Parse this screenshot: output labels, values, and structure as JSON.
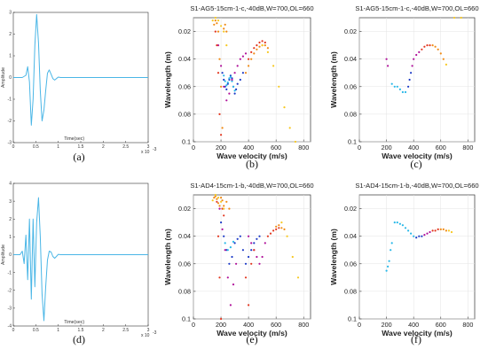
{
  "chart_data": [
    {
      "id": "a",
      "type": "line",
      "caption": "(a)",
      "title": "",
      "xlabel": "Time(sec)",
      "ylabel": "Amplitude",
      "xlim": [
        0,
        3
      ],
      "ylim": [
        -3,
        3
      ],
      "xticks": [
        "0",
        "0.5",
        "1",
        "1.5",
        "2",
        "2.5",
        "3"
      ],
      "yticks": [
        "-3",
        "-2",
        "-1",
        "0",
        "1",
        "2",
        "3"
      ],
      "x_exponent": "x 10",
      "x_exponent_power": "-3",
      "series": [
        {
          "color": "#4ab6e6",
          "x": [
            0,
            0.2,
            0.28,
            0.32,
            0.36,
            0.4,
            0.44,
            0.48,
            0.52,
            0.56,
            0.6,
            0.64,
            0.68,
            0.72,
            0.76,
            0.8,
            0.84,
            0.88,
            0.92,
            0.96,
            1.0,
            1.05,
            1.1,
            1.2,
            3.0
          ],
          "y": [
            0,
            0,
            0.1,
            0.5,
            -0.2,
            -2.2,
            -1.0,
            1.5,
            2.9,
            1.6,
            -0.6,
            -2.0,
            -1.5,
            -0.6,
            0.2,
            0.35,
            0.15,
            -0.05,
            -0.12,
            -0.05,
            0.02,
            0,
            0,
            0,
            0
          ]
        }
      ]
    },
    {
      "id": "b",
      "type": "scatter",
      "caption": "(b)",
      "title": "S1-AG5-15cm-1-c,-40dB,W=700,OL=660",
      "xlabel": "Wave velocity (m/s)",
      "ylabel": "Wavelength (m)",
      "xlim": [
        0,
        850
      ],
      "ylim": [
        0.1,
        0.01
      ],
      "xticks": [
        "0",
        "200",
        "400",
        "600",
        "800"
      ],
      "yticks": [
        "0.02",
        "0.04",
        "0.06",
        "0.08",
        "0.1"
      ],
      "series": [
        {
          "color": "#1b39c6",
          "x": [
            210,
            220,
            230,
            240,
            250,
            260,
            270,
            280,
            290,
            300,
            310,
            320,
            340,
            360
          ],
          "y": [
            0.05,
            0.055,
            0.06,
            0.062,
            0.058,
            0.055,
            0.052,
            0.054,
            0.06,
            0.065,
            0.062,
            0.058,
            0.055,
            0.05
          ]
        },
        {
          "color": "#29b8e8",
          "x": [
            220,
            230,
            240,
            250,
            260,
            270,
            280,
            290,
            300
          ],
          "y": [
            0.052,
            0.056,
            0.059,
            0.057,
            0.054,
            0.053,
            0.056,
            0.06,
            0.063
          ]
        },
        {
          "color": "#b0129a",
          "x": [
            180,
            200,
            220,
            240,
            260,
            280,
            300,
            320,
            340,
            360,
            380
          ],
          "y": [
            0.03,
            0.045,
            0.06,
            0.07,
            0.065,
            0.055,
            0.05,
            0.045,
            0.04,
            0.038,
            0.036
          ]
        },
        {
          "color": "#e2361f",
          "x": [
            160,
            170,
            180,
            190,
            200,
            400,
            420,
            440,
            460,
            480,
            500,
            520
          ],
          "y": [
            0.02,
            0.03,
            0.05,
            0.08,
            0.095,
            0.04,
            0.035,
            0.032,
            0.03,
            0.028,
            0.027,
            0.028
          ]
        },
        {
          "color": "#f08a14",
          "x": [
            150,
            160,
            170,
            180,
            190,
            200,
            210,
            220,
            230,
            240,
            380,
            400,
            420,
            440,
            460,
            480,
            500,
            520,
            540
          ],
          "y": [
            0.015,
            0.012,
            0.014,
            0.02,
            0.04,
            0.06,
            0.09,
            0.018,
            0.015,
            0.02,
            0.05,
            0.045,
            0.04,
            0.036,
            0.033,
            0.031,
            0.03,
            0.03,
            0.032
          ]
        },
        {
          "color": "#f7c820",
          "x": [
            140,
            160,
            180,
            200,
            220,
            240,
            500,
            540,
            580,
            620,
            660,
            700,
            740
          ],
          "y": [
            0.012,
            0.01,
            0.012,
            0.016,
            0.02,
            0.03,
            0.03,
            0.035,
            0.045,
            0.06,
            0.075,
            0.09,
            0.1
          ]
        }
      ]
    },
    {
      "id": "c",
      "type": "scatter",
      "caption": "(c)",
      "title": "S1-AG5-15cm-1-c,-40dB,W=700,OL=660",
      "xlabel": "Wave velocity (m/s)",
      "ylabel": "Wavelength (m)",
      "xlim": [
        0,
        850
      ],
      "ylim": [
        0.1,
        0.01
      ],
      "xticks": [
        "0",
        "200",
        "400",
        "600",
        "800"
      ],
      "yticks": [
        "0.02",
        "0.04",
        "0.06",
        "0.08",
        "0.1"
      ],
      "series": [
        {
          "color": "#29b8e8",
          "x": [
            240,
            260,
            280,
            300,
            320,
            340
          ],
          "y": [
            0.058,
            0.06,
            0.06,
            0.062,
            0.064,
            0.064
          ]
        },
        {
          "color": "#1b39c6",
          "x": [
            360,
            370,
            380
          ],
          "y": [
            0.06,
            0.055,
            0.05
          ]
        },
        {
          "color": "#b0129a",
          "x": [
            200,
            210,
            390,
            400,
            420,
            440
          ],
          "y": [
            0.04,
            0.045,
            0.045,
            0.04,
            0.037,
            0.035
          ]
        },
        {
          "color": "#e2361f",
          "x": [
            460,
            480,
            500,
            520
          ],
          "y": [
            0.033,
            0.031,
            0.03,
            0.03
          ]
        },
        {
          "color": "#f08a14",
          "x": [
            540,
            560,
            580,
            600,
            620
          ],
          "y": [
            0.03,
            0.031,
            0.033,
            0.036,
            0.04
          ]
        },
        {
          "color": "#f7c820",
          "x": [
            640,
            700,
            750
          ],
          "y": [
            0.044,
            0.01,
            0.01
          ]
        }
      ]
    },
    {
      "id": "d",
      "type": "line",
      "caption": "(d)",
      "title": "",
      "xlabel": "Time(sec)",
      "ylabel": "Amplitude",
      "xlim": [
        0,
        3
      ],
      "ylim": [
        -4,
        4
      ],
      "xticks": [
        "0",
        "0.5",
        "1",
        "1.5",
        "2",
        "2.5",
        "3"
      ],
      "yticks": [
        "-4",
        "-3",
        "-2",
        "-1",
        "0",
        "1",
        "2",
        "3",
        "4"
      ],
      "x_exponent": "x 10",
      "x_exponent_power": "-3",
      "series": [
        {
          "color": "#4ab6e6",
          "x": [
            0,
            0.15,
            0.2,
            0.24,
            0.28,
            0.32,
            0.36,
            0.4,
            0.44,
            0.48,
            0.52,
            0.56,
            0.6,
            0.64,
            0.68,
            0.72,
            0.76,
            0.8,
            0.84,
            0.88,
            0.92,
            0.96,
            1.0,
            1.05,
            1.1,
            1.2,
            3.0
          ],
          "y": [
            0,
            0,
            0.2,
            -0.5,
            1.1,
            -1.4,
            2.0,
            -2.5,
            2.0,
            -1.8,
            1.8,
            3.2,
            1.0,
            -2.2,
            -3.7,
            -1.8,
            -0.3,
            0.2,
            0.15,
            -0.1,
            -0.2,
            -0.1,
            0.02,
            0,
            0,
            0,
            0
          ]
        }
      ]
    },
    {
      "id": "e",
      "type": "scatter",
      "caption": "(e)",
      "title": "S1-AD4-15cm-1-b,-40dB,W=700,OL=660",
      "xlabel": "Wave velocity (m/s)",
      "ylabel": "Wavelength (m)",
      "xlim": [
        0,
        850
      ],
      "ylim": [
        0.1,
        0.01
      ],
      "xticks": [
        "0",
        "200",
        "400",
        "600",
        "800"
      ],
      "yticks": [
        "0.02",
        "0.04",
        "0.06",
        "0.08",
        "0.1"
      ],
      "series": [
        {
          "color": "#1b39c6",
          "x": [
            200,
            220,
            240,
            260,
            280,
            300,
            320,
            340,
            360,
            380,
            400,
            420,
            440,
            460,
            480
          ],
          "y": [
            0.03,
            0.04,
            0.05,
            0.06,
            0.055,
            0.045,
            0.042,
            0.04,
            0.05,
            0.06,
            0.055,
            0.05,
            0.045,
            0.042,
            0.04
          ]
        },
        {
          "color": "#29b8e8",
          "x": [
            230,
            250,
            270,
            290
          ],
          "y": [
            0.045,
            0.05,
            0.048,
            0.044
          ]
        },
        {
          "color": "#b0129a",
          "x": [
            190,
            210,
            230,
            250,
            270,
            290,
            310,
            400,
            420,
            440,
            460,
            480,
            500,
            520
          ],
          "y": [
            0.02,
            0.035,
            0.05,
            0.07,
            0.09,
            0.075,
            0.06,
            0.04,
            0.045,
            0.05,
            0.055,
            0.06,
            0.055,
            0.045
          ]
        },
        {
          "color": "#e2361f",
          "x": [
            170,
            180,
            190,
            200,
            210,
            220,
            380,
            400,
            420,
            440,
            540,
            560,
            580,
            600,
            620
          ],
          "y": [
            0.015,
            0.04,
            0.07,
            0.1,
            0.02,
            0.025,
            0.07,
            0.09,
            0.06,
            0.05,
            0.04,
            0.038,
            0.036,
            0.035,
            0.034
          ]
        },
        {
          "color": "#f08a14",
          "x": [
            150,
            160,
            170,
            180,
            190,
            200,
            210,
            220,
            240,
            260,
            600,
            620,
            640,
            660
          ],
          "y": [
            0.012,
            0.011,
            0.013,
            0.016,
            0.018,
            0.012,
            0.014,
            0.018,
            0.015,
            0.02,
            0.033,
            0.032,
            0.034,
            0.035
          ]
        },
        {
          "color": "#f7c820",
          "x": [
            140,
            160,
            180,
            200,
            220,
            640,
            680,
            720,
            760
          ],
          "y": [
            0.014,
            0.01,
            0.012,
            0.015,
            0.02,
            0.03,
            0.04,
            0.055,
            0.07
          ]
        }
      ]
    },
    {
      "id": "f",
      "type": "scatter",
      "caption": "(f)",
      "title": "S1-AD4-15cm-1-b,-40dB,W=700,OL=660",
      "xlabel": "Wave velocity (m/s)",
      "ylabel": "Wavelength (m)",
      "xlim": [
        0,
        850
      ],
      "ylim": [
        0.1,
        0.01
      ],
      "xticks": [
        "0",
        "200",
        "400",
        "600",
        "800"
      ],
      "yticks": [
        "0.02",
        "0.04",
        "0.06",
        "0.08",
        "0.1"
      ],
      "series": [
        {
          "color": "#29b8e8",
          "x": [
            200,
            210,
            220,
            230,
            240,
            260,
            280,
            300,
            320,
            340,
            360,
            380,
            400
          ],
          "y": [
            0.065,
            0.062,
            0.058,
            0.05,
            0.045,
            0.03,
            0.03,
            0.031,
            0.032,
            0.034,
            0.036,
            0.038,
            0.04
          ]
        },
        {
          "color": "#1b39c6",
          "x": [
            420,
            440,
            460
          ],
          "y": [
            0.041,
            0.04,
            0.04
          ]
        },
        {
          "color": "#b0129a",
          "x": [
            480,
            500,
            520
          ],
          "y": [
            0.039,
            0.038,
            0.037
          ]
        },
        {
          "color": "#e2361f",
          "x": [
            540,
            560,
            580
          ],
          "y": [
            0.036,
            0.036,
            0.035
          ]
        },
        {
          "color": "#f08a14",
          "x": [
            600,
            620,
            640
          ],
          "y": [
            0.035,
            0.035,
            0.036
          ]
        },
        {
          "color": "#f7c820",
          "x": [
            660,
            680
          ],
          "y": [
            0.036,
            0.037
          ]
        }
      ]
    }
  ]
}
